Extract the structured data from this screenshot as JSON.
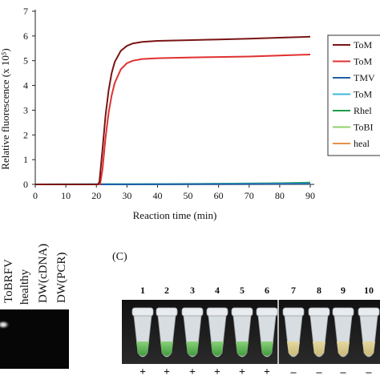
{
  "chart_data": {
    "type": "line",
    "xlabel": "Reaction time (min)",
    "ylabel": "Relative fluorescence (x 10⁵)",
    "xlim": [
      0,
      90
    ],
    "ylim": [
      0,
      7
    ],
    "xticks": [
      "0",
      "10",
      "20",
      "30",
      "40",
      "50",
      "60",
      "70",
      "80",
      "90"
    ],
    "yticks": [
      "0",
      "1",
      "2",
      "3",
      "4",
      "5",
      "6",
      "7"
    ],
    "grid": false,
    "legend_position": "right",
    "series": [
      {
        "name": "ToM",
        "color": "#7a1414",
        "x": [
          0,
          20.5,
          21,
          22,
          23,
          24,
          25,
          26,
          28,
          30,
          32,
          35,
          40,
          50,
          60,
          70,
          80,
          90
        ],
        "y": [
          0,
          0,
          0.1,
          1.4,
          2.8,
          3.8,
          4.5,
          4.95,
          5.4,
          5.6,
          5.7,
          5.76,
          5.8,
          5.83,
          5.86,
          5.89,
          5.93,
          5.97
        ]
      },
      {
        "name": "ToM",
        "color": "#e03030",
        "x": [
          0,
          21.2,
          22,
          23,
          24,
          25,
          26,
          28,
          30,
          32,
          35,
          40,
          50,
          60,
          70,
          80,
          90
        ],
        "y": [
          0,
          0,
          0.6,
          1.9,
          2.9,
          3.6,
          4.1,
          4.65,
          4.9,
          5.0,
          5.07,
          5.1,
          5.13,
          5.15,
          5.17,
          5.21,
          5.25
        ]
      },
      {
        "name": "TMV",
        "color": "#1f5fa8",
        "x": [
          0,
          30,
          60,
          90
        ],
        "y": [
          0,
          0,
          0.01,
          0.02
        ]
      },
      {
        "name": "ToM",
        "color": "#3bb8d8",
        "x": [
          0,
          30,
          60,
          90
        ],
        "y": [
          0,
          0.01,
          0.02,
          0.04
        ]
      },
      {
        "name": "Rhel",
        "color": "#1e9e4a",
        "x": [
          0,
          30,
          60,
          80,
          90
        ],
        "y": [
          0,
          0.01,
          0.03,
          0.05,
          0.07
        ]
      },
      {
        "name": "ToBI",
        "color": "#8fd16a",
        "x": [
          0,
          30,
          60,
          90
        ],
        "y": [
          0,
          0,
          0.02,
          0.03
        ]
      },
      {
        "name": "heal",
        "color": "#e8904a",
        "x": [
          0,
          30,
          60,
          90
        ],
        "y": [
          0,
          0,
          0.01,
          0.01
        ]
      }
    ]
  },
  "gel": {
    "lane_labels": [
      "ToBRFV",
      "healthy",
      "DW(cDNA)",
      "DW(PCR)"
    ]
  },
  "panel_c": {
    "label": "(C)",
    "tube_numbers": [
      "1",
      "2",
      "3",
      "4",
      "5",
      "6",
      "7",
      "8",
      "9",
      "10"
    ],
    "signs": [
      "+",
      "+",
      "+",
      "+",
      "+",
      "+",
      "–",
      "–",
      "–",
      "–"
    ]
  }
}
